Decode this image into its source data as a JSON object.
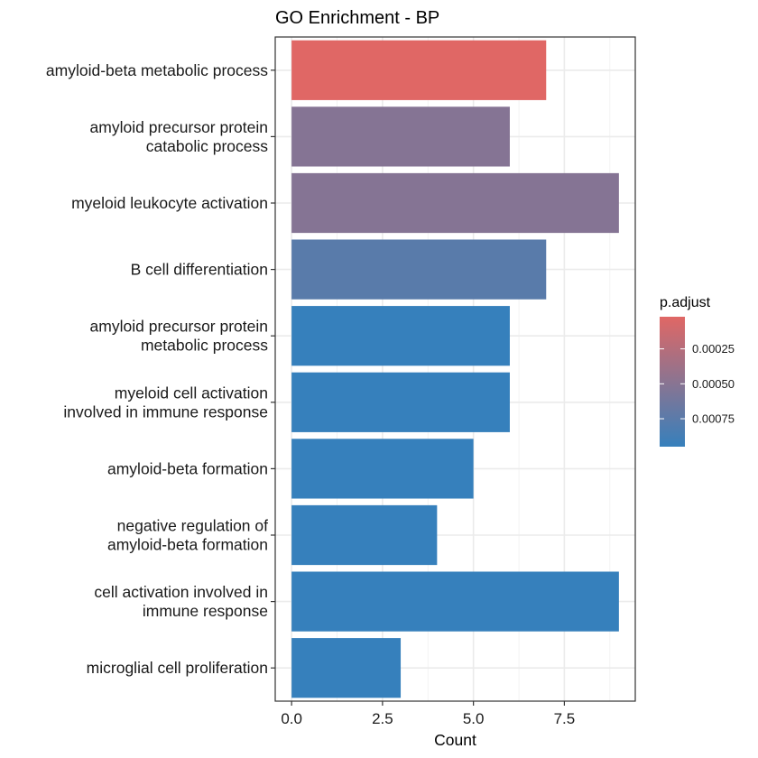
{
  "chart_data": {
    "type": "bar",
    "orientation": "horizontal",
    "title": "GO Enrichment - BP",
    "xlabel": "Count",
    "ylabel": "",
    "xlim": [
      -0.45,
      9.45
    ],
    "xticks": [
      0.0,
      2.5,
      5.0,
      7.5
    ],
    "xtick_labels": [
      "0.0",
      "2.5",
      "5.0",
      "7.5"
    ],
    "grid": true,
    "categories": [
      [
        "amyloid-beta metabolic process"
      ],
      [
        "amyloid precursor protein",
        "catabolic process"
      ],
      [
        "myeloid leukocyte activation"
      ],
      [
        "B cell differentiation"
      ],
      [
        "amyloid precursor protein",
        "metabolic process"
      ],
      [
        "myeloid cell activation",
        "involved in immune response"
      ],
      [
        "amyloid-beta formation"
      ],
      [
        "negative regulation of",
        "amyloid-beta formation"
      ],
      [
        "cell activation involved in",
        "immune response"
      ],
      [
        "microglial cell proliferation"
      ]
    ],
    "values": [
      7,
      6,
      9,
      7,
      6,
      6,
      5,
      4,
      9,
      3
    ],
    "p_adjust": [
      2e-05,
      0.00052,
      0.00052,
      0.00076,
      0.00095,
      0.00095,
      0.00095,
      0.00095,
      0.00095,
      0.00095
    ],
    "legend": {
      "title": "p.adjust",
      "placement": "right",
      "range": [
        2e-05,
        0.00095
      ],
      "ticks": [
        0.00025,
        0.0005,
        0.00075
      ],
      "tick_labels": [
        "0.00025",
        "0.00050",
        "0.00075"
      ],
      "color_low": "#E06765",
      "color_high": "#3680BC"
    }
  }
}
